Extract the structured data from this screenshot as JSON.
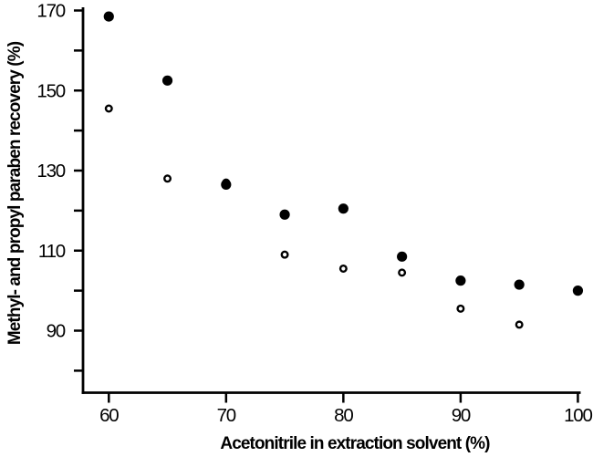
{
  "figure": {
    "background": "#ffffff",
    "ink_color": "#000000"
  },
  "chart_data": {
    "type": "scatter",
    "title": "",
    "xlabel": "Acetonitrile in extraction solvent (%)",
    "ylabel": "Methyl- and propyl paraben recovery (%)",
    "xlim": [
      57.8,
      100.2
    ],
    "ylim": [
      74.5,
      170.8
    ],
    "x_ticks": [
      60,
      70,
      80,
      90,
      100
    ],
    "y_major_ticks": [
      90,
      110,
      130,
      150,
      170
    ],
    "y_minor_ticks": [
      80,
      100,
      120,
      140,
      160
    ],
    "grid": false,
    "legend_position": "none",
    "x": [
      60,
      65,
      70,
      75,
      80,
      85,
      90,
      95,
      100
    ],
    "series": [
      {
        "name": "open-circles",
        "marker": "open-circle",
        "values": [
          145.5,
          128,
          127,
          109,
          105.5,
          104.5,
          95.5,
          91.5,
          null
        ]
      },
      {
        "name": "filled-circles",
        "marker": "filled-circle",
        "values": [
          168.5,
          152.5,
          126.5,
          119,
          120.5,
          108.5,
          102.5,
          101.5,
          100
        ]
      }
    ]
  }
}
